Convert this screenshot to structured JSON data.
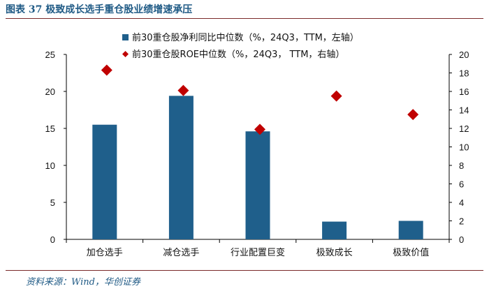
{
  "figure": {
    "title": "图表 37   极致成长选手重仓股业绩增速承压",
    "source": "资料来源：Wind，华创证券"
  },
  "colors": {
    "bar": "#1f5f8b",
    "marker": "#c00000",
    "axis": "#000000",
    "title": "#1f5a85",
    "rule": "#7a2a2a"
  },
  "chart_data": {
    "type": "bar",
    "categories": [
      "加仓选手",
      "减仓选手",
      "行业配置巨变",
      "极致成长",
      "极致价值"
    ],
    "series": [
      {
        "name": "前30重仓股净利同比中位数（%，24Q3，TTM，左轴）",
        "type": "bar",
        "axis": "left",
        "values": [
          15.5,
          19.4,
          14.6,
          2.4,
          2.5
        ]
      },
      {
        "name": "前30重仓股ROE中位数（%，24Q3， TTM，右轴）",
        "type": "scatter",
        "marker": "diamond",
        "axis": "right",
        "values": [
          18.3,
          16.1,
          11.9,
          15.5,
          13.5
        ]
      }
    ],
    "left_axis": {
      "min": 0,
      "max": 25,
      "ticks": [
        0,
        5,
        10,
        15,
        20,
        25
      ]
    },
    "right_axis": {
      "min": 0,
      "max": 20,
      "ticks": [
        0,
        2,
        4,
        6,
        8,
        10,
        12,
        14,
        16,
        18,
        20
      ]
    },
    "grid": false,
    "legend_position": "top"
  }
}
